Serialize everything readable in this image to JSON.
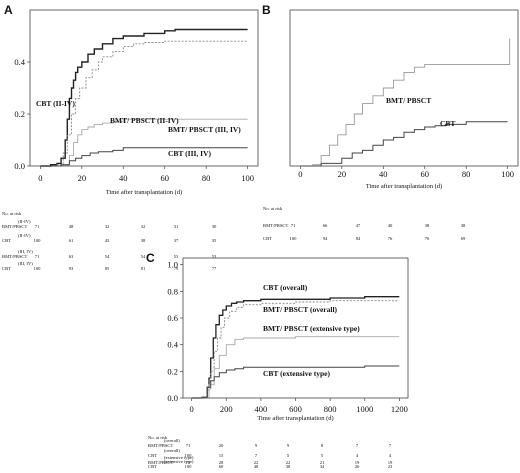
{
  "chart_data": [
    {
      "panel": "A",
      "type": "line",
      "xlabel": "Time after transplantation (d)",
      "ylabel": "",
      "xlim": [
        -5,
        105
      ],
      "ylim": [
        0.0,
        0.6
      ],
      "xticks": [
        0,
        20,
        40,
        60,
        80,
        100
      ],
      "yticks": [
        0.0,
        0.2,
        0.4
      ],
      "yticklabels": [
        "0.0",
        "0.2",
        "0.4"
      ],
      "series": [
        {
          "name": "CBT (II-IV)",
          "color": "#222222",
          "width": 1.4,
          "x": [
            0,
            5,
            8,
            10,
            12,
            13,
            14,
            15,
            16,
            17,
            18,
            20,
            23,
            26,
            30,
            35,
            40,
            50,
            60,
            65,
            75,
            100
          ],
          "y": [
            0,
            0.005,
            0.01,
            0.03,
            0.1,
            0.18,
            0.26,
            0.3,
            0.33,
            0.36,
            0.38,
            0.4,
            0.43,
            0.45,
            0.47,
            0.49,
            0.5,
            0.51,
            0.52,
            0.525,
            0.525,
            0.525
          ]
        },
        {
          "name": "BMT/ PBSCT (II-IV)",
          "color": "#888888",
          "width": 0.9,
          "dash": "2,1.5",
          "x": [
            0,
            8,
            11,
            13,
            15,
            17,
            19,
            22,
            25,
            28,
            30,
            35,
            40,
            45,
            50,
            60,
            80,
            100
          ],
          "y": [
            0,
            0.005,
            0.05,
            0.12,
            0.2,
            0.26,
            0.3,
            0.34,
            0.37,
            0.4,
            0.42,
            0.44,
            0.46,
            0.47,
            0.475,
            0.48,
            0.48,
            0.48
          ]
        },
        {
          "name": "BMT/ PBSCT (III, IV)",
          "color": "#aaaaaa",
          "width": 0.9,
          "x": [
            0,
            10,
            14,
            16,
            18,
            20,
            23,
            26,
            30,
            35,
            40,
            60,
            100
          ],
          "y": [
            0,
            0.005,
            0.04,
            0.09,
            0.12,
            0.14,
            0.15,
            0.16,
            0.165,
            0.17,
            0.18,
            0.18,
            0.18
          ]
        },
        {
          "name": "CBT (III, IV)",
          "color": "#444444",
          "width": 1.0,
          "x": [
            0,
            10,
            14,
            17,
            20,
            24,
            28,
            35,
            40,
            60,
            100
          ],
          "y": [
            0,
            0.005,
            0.02,
            0.03,
            0.04,
            0.05,
            0.055,
            0.06,
            0.07,
            0.07,
            0.07
          ]
        }
      ],
      "annotations": [
        "CBT (II-IV)",
        "BMT/ PBSCT (II-IV)",
        "BMT/ PBSCT (III, IV)",
        "CBT (III, IV)"
      ],
      "risk_header": "No. at risk",
      "risk_rows": [
        {
          "label": "BMT/PBSCT",
          "sub": "(II-IV)",
          "values": [
            "71",
            "48",
            "32",
            "32",
            "31",
            "30"
          ]
        },
        {
          "label": "CBT",
          "sub": "(II-IV)",
          "values": [
            "100",
            "61",
            "43",
            "38",
            "37",
            "35"
          ]
        },
        {
          "label": "BMT/PBSCT",
          "sub": "(III, IV)",
          "values": [
            "71",
            "63",
            "54",
            "54",
            "53",
            "53"
          ]
        },
        {
          "label": "CBT",
          "sub": "(III, IV)",
          "values": [
            "100",
            "93",
            "85",
            "81",
            "79",
            "77"
          ]
        }
      ]
    },
    {
      "panel": "B",
      "type": "line",
      "xlabel": "Time after transplantation (d)",
      "ylabel": "",
      "xlim": [
        -5,
        105
      ],
      "ylim": [
        0.0,
        0.6
      ],
      "xticks": [
        0,
        20,
        40,
        60,
        80,
        100
      ],
      "yticks": [],
      "yticklabels": [],
      "series": [
        {
          "name": "BMT/ PBSCT",
          "color": "#999999",
          "width": 0.9,
          "x": [
            0,
            6,
            10,
            14,
            18,
            22,
            26,
            30,
            35,
            40,
            45,
            50,
            55,
            60,
            70,
            80,
            90,
            100,
            101,
            101
          ],
          "y": [
            0,
            0.005,
            0.04,
            0.08,
            0.12,
            0.16,
            0.2,
            0.24,
            0.27,
            0.3,
            0.33,
            0.36,
            0.38,
            0.39,
            0.39,
            0.39,
            0.39,
            0.39,
            0.39,
            0.49
          ]
        },
        {
          "name": "CBT",
          "color": "#444444",
          "width": 1.0,
          "x": [
            0,
            10,
            20,
            25,
            30,
            35,
            40,
            45,
            50,
            55,
            60,
            65,
            70,
            75,
            80,
            100
          ],
          "y": [
            0,
            0.01,
            0.03,
            0.05,
            0.06,
            0.08,
            0.1,
            0.11,
            0.13,
            0.14,
            0.15,
            0.155,
            0.16,
            0.16,
            0.17,
            0.17
          ]
        }
      ],
      "annotations": [
        "BMT/ PBSCT",
        "CBT"
      ],
      "risk_header": "No. at risk",
      "risk_rows": [
        {
          "label": "BMT/PBSCT",
          "sub": "",
          "values": [
            "71",
            "66",
            "47",
            "40",
            "38",
            "38"
          ]
        },
        {
          "label": "CBT",
          "sub": "",
          "values": [
            "100",
            "94",
            "84",
            "76",
            "70",
            "69"
          ]
        }
      ]
    },
    {
      "panel": "C",
      "type": "line",
      "xlabel": "Time after transplantation (d)",
      "ylabel": "",
      "xlim": [
        -50,
        1250
      ],
      "ylim": [
        0.0,
        1.05
      ],
      "xticks": [
        0,
        200,
        400,
        600,
        800,
        1000,
        1200
      ],
      "yticks": [
        0.0,
        0.2,
        0.4,
        0.6,
        0.8,
        1.0
      ],
      "yticklabels": [
        "0.0",
        "0.2",
        "0.4",
        "0.6",
        "0.8",
        "1.0"
      ],
      "series": [
        {
          "name": "CBT (overall)",
          "color": "#222222",
          "width": 1.3,
          "x": [
            0,
            60,
            90,
            100,
            110,
            125,
            140,
            160,
            180,
            200,
            230,
            260,
            300,
            400,
            600,
            800,
            1000,
            1200
          ],
          "y": [
            0,
            0.005,
            0.08,
            0.15,
            0.3,
            0.45,
            0.55,
            0.62,
            0.66,
            0.69,
            0.71,
            0.72,
            0.73,
            0.74,
            0.74,
            0.75,
            0.76,
            0.76
          ]
        },
        {
          "name": "BMT/ PBSCT (overall)",
          "color": "#888888",
          "width": 0.9,
          "dash": "2,1.5",
          "x": [
            0,
            60,
            90,
            110,
            130,
            150,
            170,
            190,
            220,
            260,
            300,
            400,
            600,
            800,
            1000,
            1200
          ],
          "y": [
            0,
            0.005,
            0.06,
            0.2,
            0.35,
            0.45,
            0.53,
            0.6,
            0.65,
            0.68,
            0.7,
            0.71,
            0.72,
            0.73,
            0.73,
            0.73
          ]
        },
        {
          "name": "BMT/ PBSCT (extensive type)",
          "color": "#aaaaaa",
          "width": 0.9,
          "x": [
            0,
            70,
            100,
            130,
            160,
            200,
            250,
            300,
            400,
            600,
            800,
            1000,
            1200
          ],
          "y": [
            0,
            0.005,
            0.1,
            0.22,
            0.32,
            0.4,
            0.44,
            0.45,
            0.45,
            0.46,
            0.46,
            0.46,
            0.46
          ]
        },
        {
          "name": "CBT (extensive type)",
          "color": "#444444",
          "width": 1.0,
          "x": [
            0,
            70,
            90,
            110,
            130,
            160,
            200,
            250,
            300,
            400,
            600,
            800,
            1000,
            1200
          ],
          "y": [
            0,
            0.005,
            0.08,
            0.13,
            0.16,
            0.19,
            0.21,
            0.22,
            0.23,
            0.23,
            0.23,
            0.23,
            0.24,
            0.24
          ]
        }
      ],
      "annotations": [
        "CBT (overall)",
        "BMT/ PBSCT (overall)",
        "BMT/ PBSCT (extensive type)",
        "CBT (extensive type)"
      ],
      "risk_header": "No. at risk",
      "risk_rows": [
        {
          "label": "BMT/PBSCT",
          "sub": "(overall)",
          "values": [
            "71",
            "20",
            "9",
            "9",
            "8",
            "7",
            "7"
          ]
        },
        {
          "label": "CBT",
          "sub": "(overall)",
          "values": [
            "100",
            "15",
            "7",
            "5",
            "5",
            "4",
            "4"
          ]
        },
        {
          "label": "BMT/PBSCT",
          "sub": "(extensive type)",
          "values": [
            "71",
            "28",
            "22",
            "22",
            "21",
            "19",
            "19"
          ]
        },
        {
          "label": "CBT",
          "sub": "(extensive type)",
          "values": [
            "100",
            "60",
            "48",
            "38",
            "34",
            "26",
            "23"
          ]
        }
      ]
    }
  ]
}
